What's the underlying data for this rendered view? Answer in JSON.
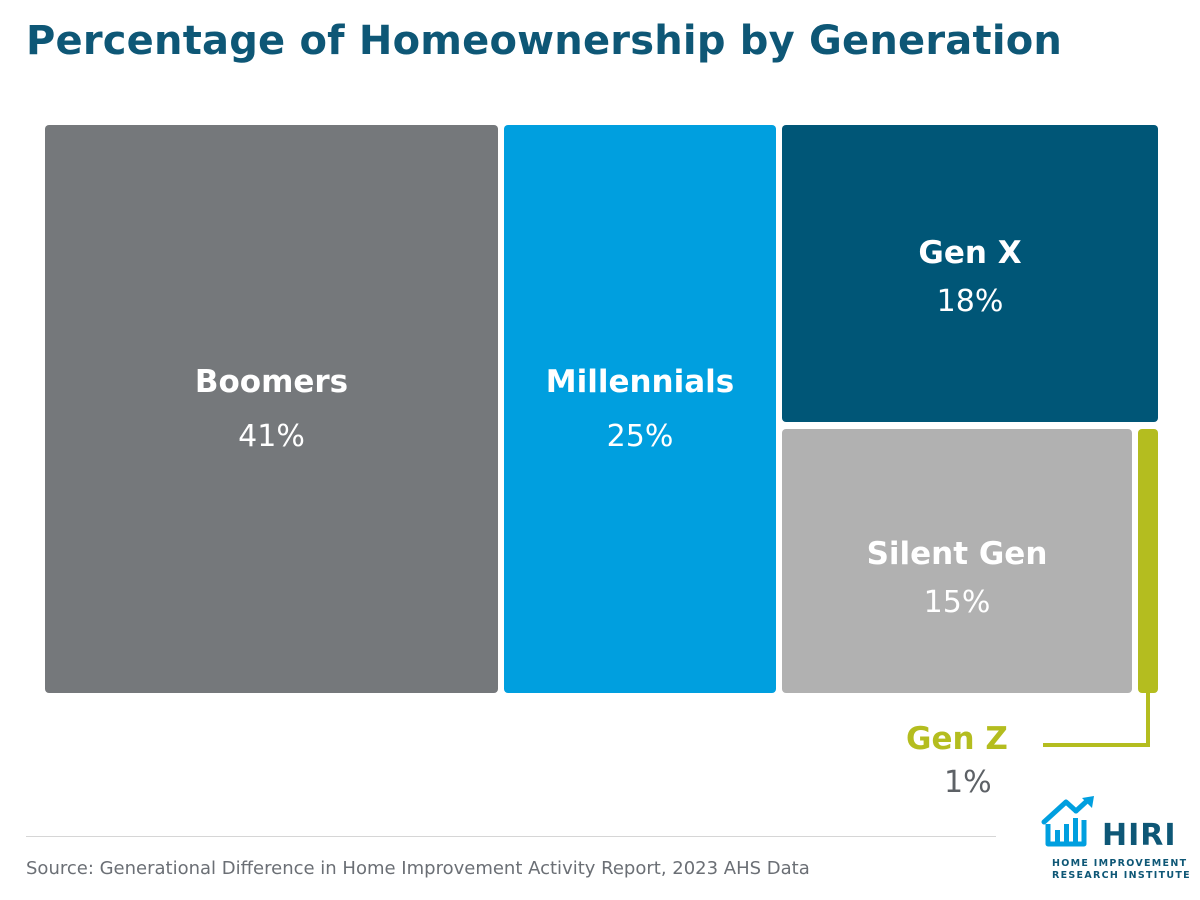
{
  "header": {
    "title": "Percentage of Homeownership by Generation"
  },
  "chart_data": {
    "type": "treemap",
    "title": "Percentage of Homeownership by Generation",
    "unit": "%",
    "items": [
      {
        "name": "Boomers",
        "value": 41,
        "label": "41%",
        "color": "#75787b"
      },
      {
        "name": "Millennials",
        "value": 25,
        "label": "25%",
        "color": "#009fdf"
      },
      {
        "name": "Gen X",
        "value": 18,
        "label": "18%",
        "color": "#005677"
      },
      {
        "name": "Silent Gen",
        "value": 15,
        "label": "15%",
        "color": "#b1b1b1"
      },
      {
        "name": "Gen Z",
        "value": 1,
        "label": "1%",
        "color": "#b4bd1f"
      }
    ]
  },
  "footer": {
    "source": "Source: Generational Difference in Home Improvement Activity Report, 2023 AHS Data"
  },
  "logo": {
    "name": "HIRI",
    "line1": "HOME IMPROVEMENT",
    "line2": "RESEARCH INSTITUTE",
    "color": "#0e5776",
    "accent": "#009fdf"
  }
}
